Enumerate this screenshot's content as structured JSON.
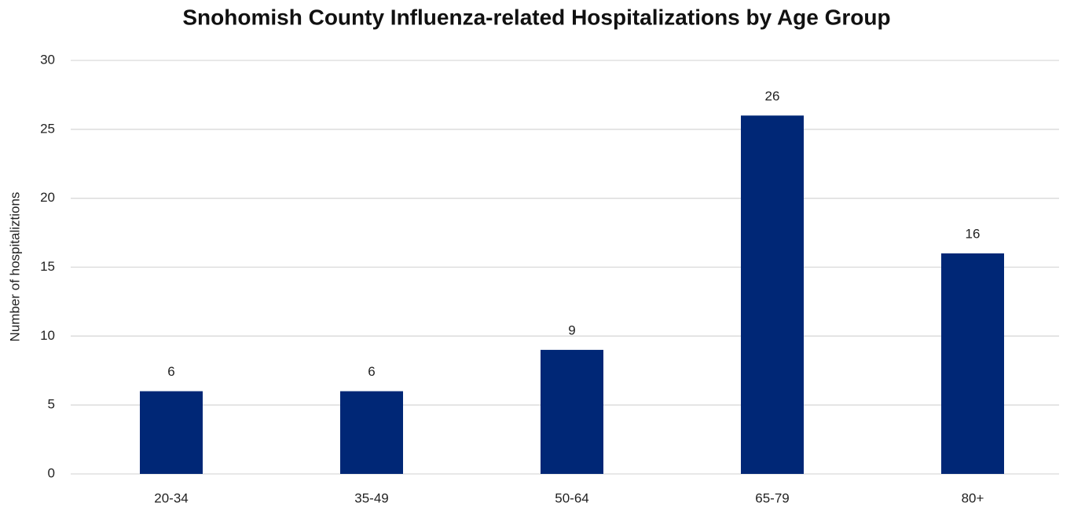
{
  "chart_data": {
    "type": "bar",
    "title": "Snohomish County Influenza-related Hospitalizations by Age Group",
    "y_label": "Number of hospitaliztions",
    "categories": [
      "20-34",
      "35-49",
      "50-64",
      "65-79",
      "80+"
    ],
    "values": [
      6,
      6,
      9,
      26,
      16
    ],
    "color": "#002776",
    "ylim": [
      0,
      30
    ],
    "yticks": [
      0,
      5,
      10,
      15,
      20,
      25,
      30
    ],
    "grid": true
  }
}
